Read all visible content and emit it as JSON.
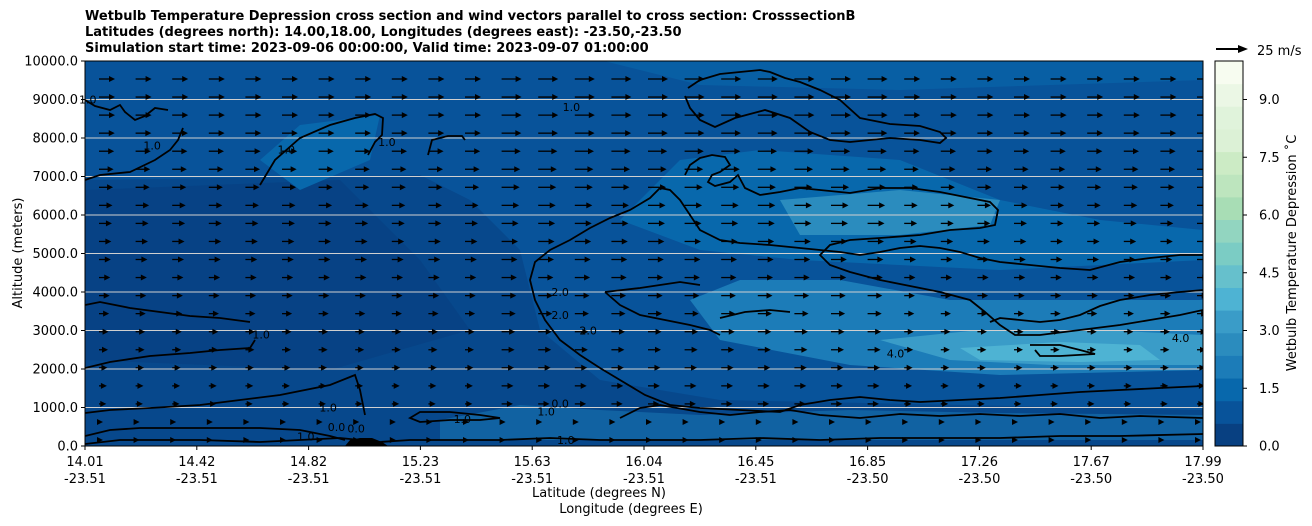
{
  "chart_data": {
    "type": "contour",
    "title_lines": [
      "Wetbulb Temperature Depression cross section and wind vectors parallel to cross section: CrosssectionB",
      "Latitudes (degrees north): 14.00,18.00, Longitudes (degrees east): -23.50,-23.50",
      "Simulation start time: 2023-09-06 00:00:00, Valid time: 2023-09-07 01:00:00"
    ],
    "xlabel_1": "Latitude (degrees N)",
    "xlabel_2": "Longitude (degrees E)",
    "ylabel": "Altitude (meters)",
    "ylim": [
      0,
      10000
    ],
    "y_ticks": [
      "0.0",
      "1000.0",
      "2000.0",
      "3000.0",
      "4000.0",
      "5000.0",
      "6000.0",
      "7000.0",
      "8000.0",
      "9000.0",
      "10000.0"
    ],
    "x_ticks": [
      {
        "lat": "14.01",
        "lon": "-23.51"
      },
      {
        "lat": "14.42",
        "lon": "-23.51"
      },
      {
        "lat": "14.82",
        "lon": "-23.51"
      },
      {
        "lat": "15.23",
        "lon": "-23.51"
      },
      {
        "lat": "15.63",
        "lon": "-23.51"
      },
      {
        "lat": "16.04",
        "lon": "-23.51"
      },
      {
        "lat": "16.45",
        "lon": "-23.51"
      },
      {
        "lat": "16.85",
        "lon": "-23.50"
      },
      {
        "lat": "17.26",
        "lon": "-23.50"
      },
      {
        "lat": "17.67",
        "lon": "-23.50"
      },
      {
        "lat": "17.99",
        "lon": "-23.50"
      }
    ],
    "colorbar": {
      "label": "Wetbulb Temperature Depression ˚C",
      "min": 0,
      "max": 10,
      "ticks": [
        "0.0",
        "1.5",
        "3.0",
        "4.5",
        "6.0",
        "7.5",
        "9.0"
      ],
      "colors": [
        "#084081",
        "#08539a",
        "#0868ac",
        "#1c7cb8",
        "#2b8cbe",
        "#3a9cc8",
        "#4eb3d3",
        "#66c0cc",
        "#7bccc4",
        "#92d5c0",
        "#a8ddb5",
        "#bde5be",
        "#ccebc5",
        "#dcf1d6",
        "#e0f3db",
        "#ebf7e5",
        "#f7fcf0"
      ]
    },
    "quiver_key": {
      "label": "25 m/s",
      "value": 25
    },
    "contour_labels": [
      {
        "text": "1.0",
        "x": 0.01,
        "y": 9000
      },
      {
        "text": "1.0",
        "x": 0.24,
        "y": 7800
      },
      {
        "text": "1.0",
        "x": 0.72,
        "y": 7700
      },
      {
        "text": "1.0",
        "x": 1.08,
        "y": 7900
      },
      {
        "text": "1.0",
        "x": 1.74,
        "y": 8800
      },
      {
        "text": "1.0",
        "x": 0.63,
        "y": 2900
      },
      {
        "text": "2.0",
        "x": 1.7,
        "y": 4000
      },
      {
        "text": "2.0",
        "x": 1.7,
        "y": 3400
      },
      {
        "text": "2.0",
        "x": 1.8,
        "y": 3000
      },
      {
        "text": "4.0",
        "x": 2.9,
        "y": 2400
      },
      {
        "text": "4.0",
        "x": 3.92,
        "y": 2800
      },
      {
        "text": "1.0",
        "x": 0.87,
        "y": 1000
      },
      {
        "text": "0.0",
        "x": 0.9,
        "y": 500
      },
      {
        "text": "0.0",
        "x": 0.97,
        "y": 450
      },
      {
        "text": "1.0",
        "x": 0.79,
        "y": 250
      },
      {
        "text": "1.0",
        "x": 1.35,
        "y": 700
      },
      {
        "text": "1.0",
        "x": 1.65,
        "y": 900
      },
      {
        "text": "0.0",
        "x": 1.7,
        "y": 1100
      },
      {
        "text": "1.0",
        "x": 1.72,
        "y": 150
      }
    ]
  }
}
